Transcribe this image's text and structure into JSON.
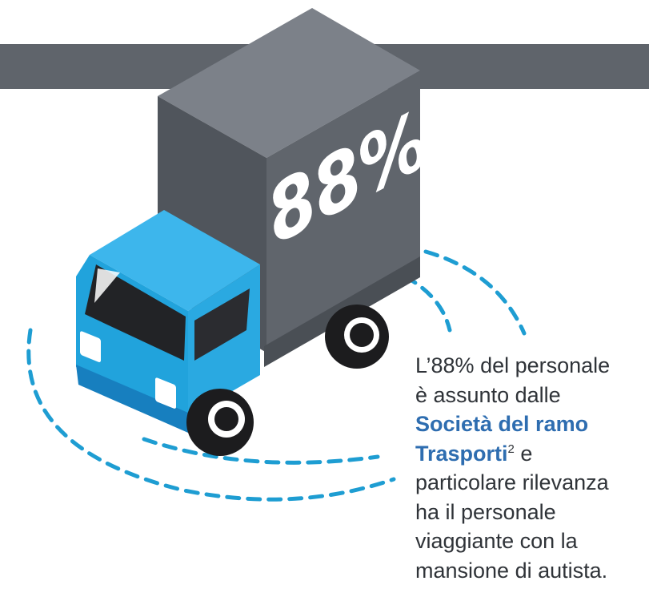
{
  "badge": "88%",
  "caption": {
    "line_1": "L’88% del personale",
    "line_2": "è assunto dalle",
    "line_3": "Società del ramo",
    "line_4": "Trasporti",
    "footnote": "2",
    "line_4_end": "e",
    "line_5": "particolare rilevanza",
    "line_6": "ha il personale",
    "line_7": "viaggiante con la",
    "line_8": "mansione di autista."
  }
}
